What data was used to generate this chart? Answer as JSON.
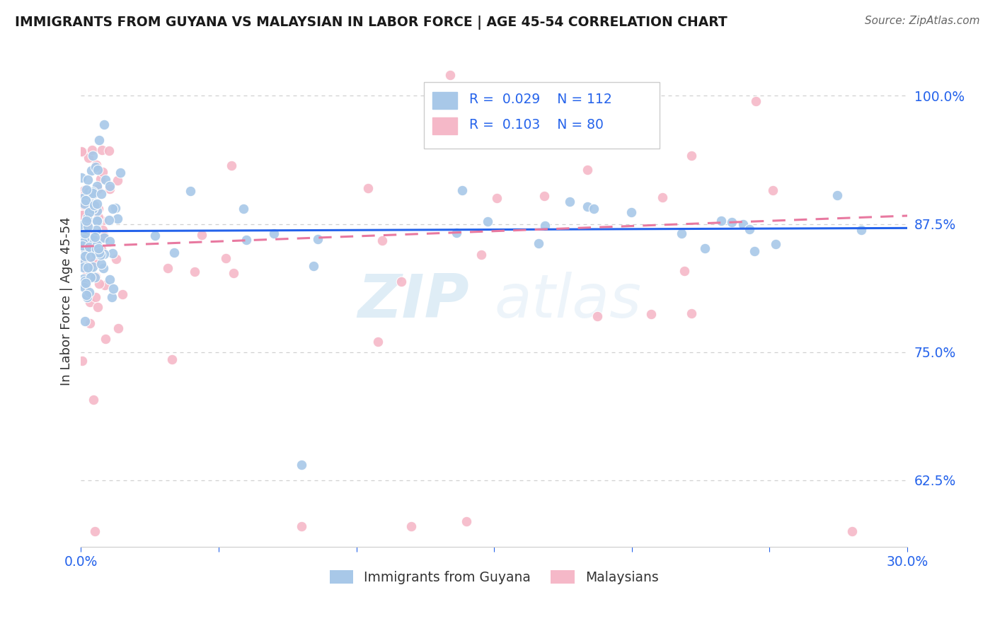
{
  "title": "IMMIGRANTS FROM GUYANA VS MALAYSIAN IN LABOR FORCE | AGE 45-54 CORRELATION CHART",
  "source": "Source: ZipAtlas.com",
  "ylabel": "In Labor Force | Age 45-54",
  "xlim": [
    0.0,
    0.3
  ],
  "ylim": [
    0.56,
    1.04
  ],
  "yticks": [
    0.625,
    0.75,
    0.875,
    1.0
  ],
  "ytick_labels": [
    "62.5%",
    "75.0%",
    "87.5%",
    "100.0%"
  ],
  "blue_R": 0.029,
  "blue_N": 112,
  "pink_R": 0.103,
  "pink_N": 80,
  "blue_color": "#a8c8e8",
  "pink_color": "#f5b8c8",
  "blue_line_color": "#2563eb",
  "pink_line_color": "#e879a0",
  "axis_color": "#2563eb",
  "background_color": "#ffffff",
  "watermark_zip": "ZIP",
  "watermark_atlas": "atlas",
  "blue_trend_x0": 0.0,
  "blue_trend_y0": 0.868,
  "blue_trend_x1": 0.3,
  "blue_trend_y1": 0.871,
  "pink_trend_x0": 0.0,
  "pink_trend_y0": 0.853,
  "pink_trend_x1": 0.3,
  "pink_trend_y1": 0.883
}
